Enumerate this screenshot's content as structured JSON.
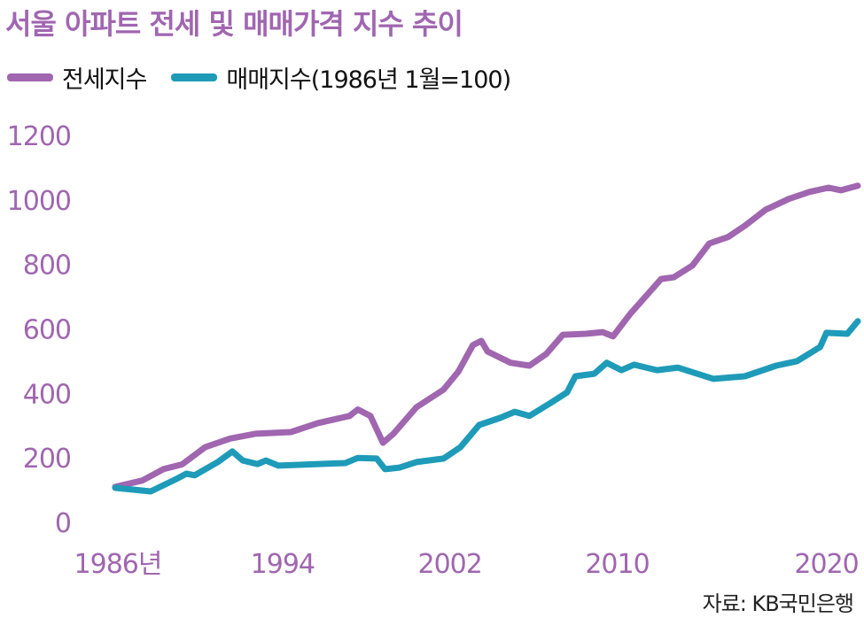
{
  "chart_data": {
    "type": "line",
    "title": "서울 아파트 전세 및 매매가격 지수 추이",
    "xlabel": "",
    "ylabel": "",
    "ylim": [
      0,
      1200
    ],
    "xlim": [
      1986,
      2021.5
    ],
    "yticks": [
      "0",
      "200",
      "400",
      "600",
      "800",
      "1000",
      "1200"
    ],
    "ytick_values": [
      0,
      200,
      400,
      600,
      800,
      1000,
      1200
    ],
    "xticks": [
      "1986년",
      "1994",
      "2002",
      "2010",
      "2020"
    ],
    "xtick_values": [
      1986,
      1994,
      2002,
      2010,
      2020
    ],
    "grid": false,
    "legend_position": "top-left",
    "source": "자료: KB국민은행",
    "series": [
      {
        "name": "전세지수",
        "color": "#a066b0",
        "x": [
          1986.0,
          1987.3,
          1988.3,
          1989.2,
          1990.3,
          1991.5,
          1992.7,
          1994.4,
          1995.7,
          1997.2,
          1997.6,
          1998.2,
          1998.8,
          1999.3,
          2000.4,
          2001.7,
          2002.4,
          2003.1,
          2003.5,
          2003.8,
          2004.9,
          2005.8,
          2006.6,
          2007.4,
          2008.5,
          2009.3,
          2009.8,
          2010.6,
          2012.1,
          2012.7,
          2013.6,
          2014.4,
          2015.3,
          2016.1,
          2017.1,
          2018.2,
          2019.2,
          2020.1,
          2020.7,
          2021.5
        ],
        "values": [
          110,
          130,
          165,
          180,
          233,
          260,
          275,
          280,
          308,
          330,
          350,
          330,
          247,
          275,
          357,
          412,
          467,
          550,
          563,
          530,
          495,
          486,
          522,
          582,
          585,
          590,
          577,
          645,
          755,
          760,
          797,
          865,
          885,
          920,
          970,
          1003,
          1025,
          1038,
          1030,
          1044
        ]
      },
      {
        "name": "매매지수(1986년 1월=100)",
        "color": "#1e9bb8",
        "x": [
          1986.0,
          1987.7,
          1989.0,
          1989.4,
          1989.8,
          1990.9,
          1991.6,
          1992.1,
          1992.8,
          1993.2,
          1993.8,
          1997.0,
          1997.6,
          1998.5,
          1998.9,
          1999.6,
          2000.4,
          2001.7,
          2002.5,
          2003.4,
          2004.4,
          2005.1,
          2005.8,
          2006.8,
          2007.6,
          2008.0,
          2008.9,
          2009.5,
          2010.2,
          2010.8,
          2011.9,
          2012.9,
          2014.6,
          2016.1,
          2017.6,
          2018.6,
          2019.7,
          2020.0,
          2021.0,
          2021.5
        ],
        "values": [
          107,
          96,
          137,
          151,
          146,
          187,
          220,
          192,
          181,
          192,
          176,
          184,
          200,
          198,
          165,
          170,
          187,
          198,
          233,
          302,
          324,
          343,
          330,
          370,
          403,
          453,
          461,
          495,
          472,
          489,
          472,
          480,
          445,
          453,
          486,
          500,
          544,
          588,
          585,
          624
        ]
      }
    ]
  }
}
